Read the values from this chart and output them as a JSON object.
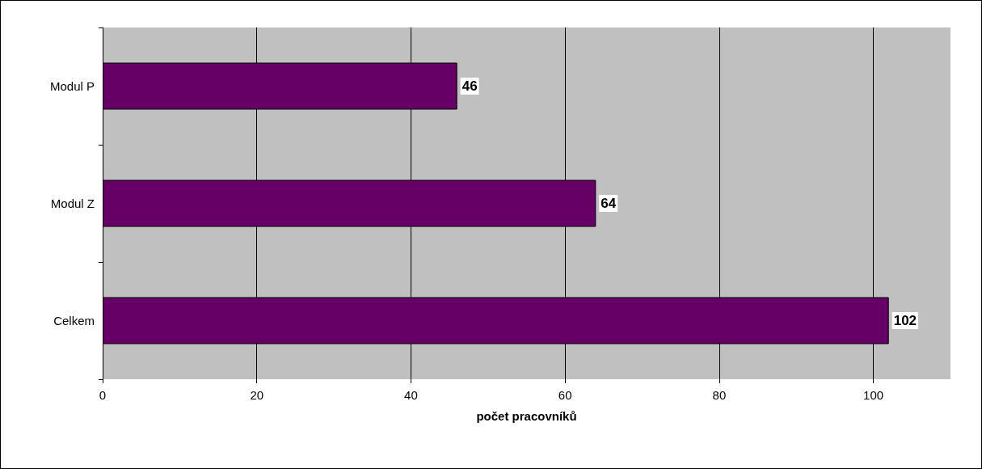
{
  "chart_data": {
    "type": "bar",
    "orientation": "horizontal",
    "categories": [
      "Modul P",
      "Modul Z",
      "Celkem"
    ],
    "values": [
      46,
      64,
      102
    ],
    "color": "#660066",
    "xlim": [
      0,
      110
    ],
    "xticks": [
      0,
      20,
      40,
      60,
      80,
      100
    ],
    "xlabel": "počet pracovníků",
    "grid": "x",
    "data_labels": true
  }
}
